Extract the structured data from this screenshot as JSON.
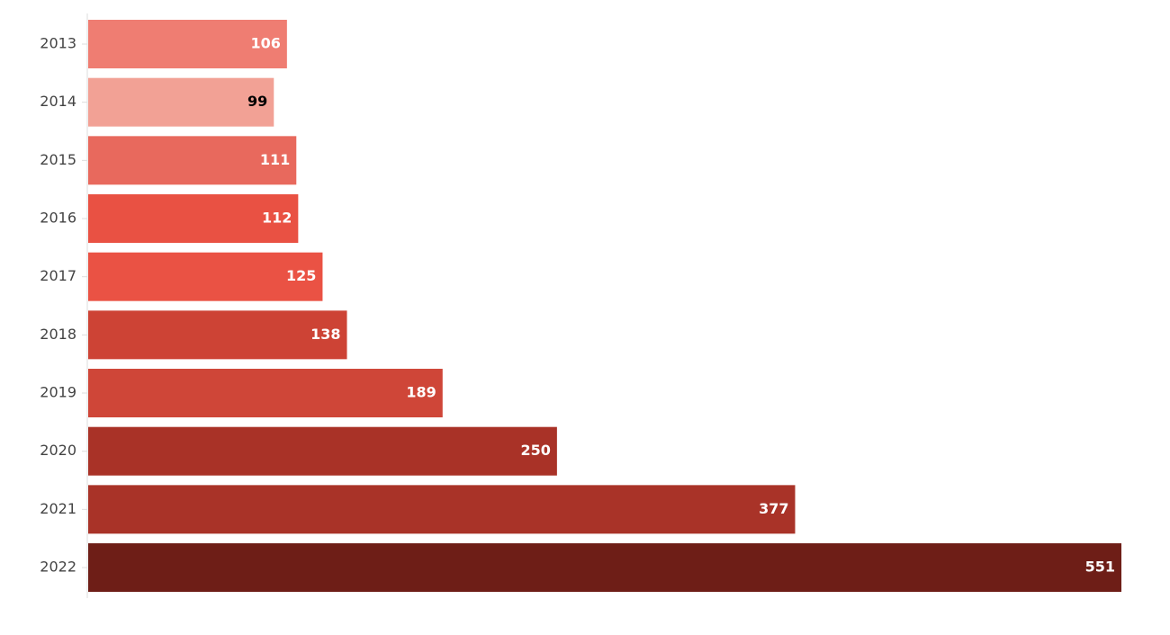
{
  "chart_data": {
    "type": "hbar",
    "categories": [
      "2013",
      "2014",
      "2015",
      "2016",
      "2017",
      "2018",
      "2019",
      "2020",
      "2021",
      "2022"
    ],
    "values": [
      106,
      99,
      111,
      112,
      125,
      138,
      189,
      250,
      377,
      551
    ],
    "colors": [
      "#ef7d72",
      "#f2a195",
      "#e8695d",
      "#e95143",
      "#ea5244",
      "#cd4335",
      "#cf4638",
      "#a93227",
      "#a93328",
      "#6e1e17"
    ],
    "value_label_colors": [
      "#ffffff",
      "#000000",
      "#ffffff",
      "#ffffff",
      "#ffffff",
      "#ffffff",
      "#ffffff",
      "#ffffff",
      "#ffffff",
      "#ffffff"
    ],
    "xlim": [
      0,
      551
    ]
  }
}
